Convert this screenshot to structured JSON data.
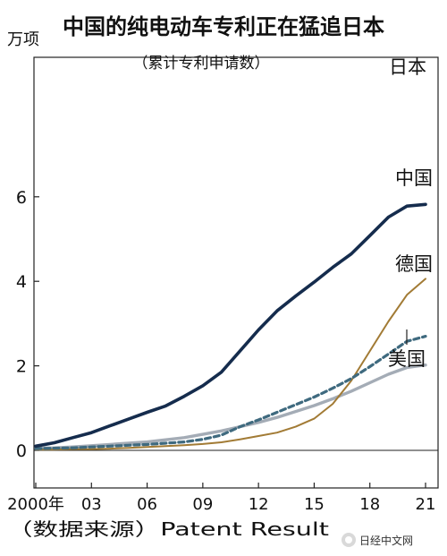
{
  "chart_data": {
    "type": "line",
    "title": "中国的纯电动车专利正在猛追日本",
    "subtitle": "（累计专利申请数）",
    "ylabel": "万项",
    "source": "（数据来源）Patent Result",
    "watermark": "日经中文网",
    "ylim": [
      0,
      6.2
    ],
    "xlim": [
      2000,
      2021
    ],
    "grid": false,
    "legend": "direct-labels",
    "yticks": [
      {
        "value": 0,
        "label": "0"
      },
      {
        "value": 2,
        "label": "2"
      },
      {
        "value": 4,
        "label": "4"
      },
      {
        "value": 6,
        "label": "6"
      }
    ],
    "xticks": [
      {
        "value": 2000,
        "label": "2000年"
      },
      {
        "value": 2003,
        "label": "03"
      },
      {
        "value": 2006,
        "label": "06"
      },
      {
        "value": 2009,
        "label": "09"
      },
      {
        "value": 2012,
        "label": "12"
      },
      {
        "value": 2015,
        "label": "15"
      },
      {
        "value": 2018,
        "label": "18"
      },
      {
        "value": 2021,
        "label": "21"
      }
    ],
    "x": [
      2000,
      2001,
      2002,
      2003,
      2004,
      2005,
      2006,
      2007,
      2008,
      2009,
      2010,
      2011,
      2012,
      2013,
      2014,
      2015,
      2016,
      2017,
      2018,
      2019,
      2020,
      2021
    ],
    "series": [
      {
        "name": "日本",
        "color": "#152c4d",
        "style": "solid",
        "values": [
          0.1,
          0.18,
          0.3,
          0.42,
          0.58,
          0.74,
          0.9,
          1.05,
          1.28,
          1.53,
          1.85,
          2.35,
          2.85,
          3.3,
          3.65,
          3.98,
          4.33,
          4.65,
          5.08,
          5.52,
          5.78,
          5.82
        ]
      },
      {
        "name": "中国",
        "color": "#a27b35",
        "style": "solid",
        "values": [
          0.02,
          0.02,
          0.03,
          0.03,
          0.04,
          0.06,
          0.08,
          0.1,
          0.12,
          0.15,
          0.19,
          0.26,
          0.34,
          0.42,
          0.56,
          0.75,
          1.1,
          1.65,
          2.35,
          3.05,
          3.68,
          4.06
        ]
      },
      {
        "name": "德国",
        "color": "#3f6a7f",
        "style": "dashed",
        "values": [
          0.04,
          0.05,
          0.06,
          0.08,
          0.1,
          0.12,
          0.14,
          0.17,
          0.2,
          0.26,
          0.36,
          0.56,
          0.72,
          0.9,
          1.08,
          1.26,
          1.47,
          1.7,
          1.98,
          2.28,
          2.58,
          2.7
        ]
      },
      {
        "name": "美国",
        "color": "#a4acb6",
        "style": "solid",
        "values": [
          0.05,
          0.06,
          0.08,
          0.11,
          0.14,
          0.17,
          0.2,
          0.25,
          0.3,
          0.38,
          0.46,
          0.56,
          0.66,
          0.78,
          0.92,
          1.06,
          1.22,
          1.4,
          1.6,
          1.8,
          1.96,
          2.02
        ]
      }
    ]
  }
}
